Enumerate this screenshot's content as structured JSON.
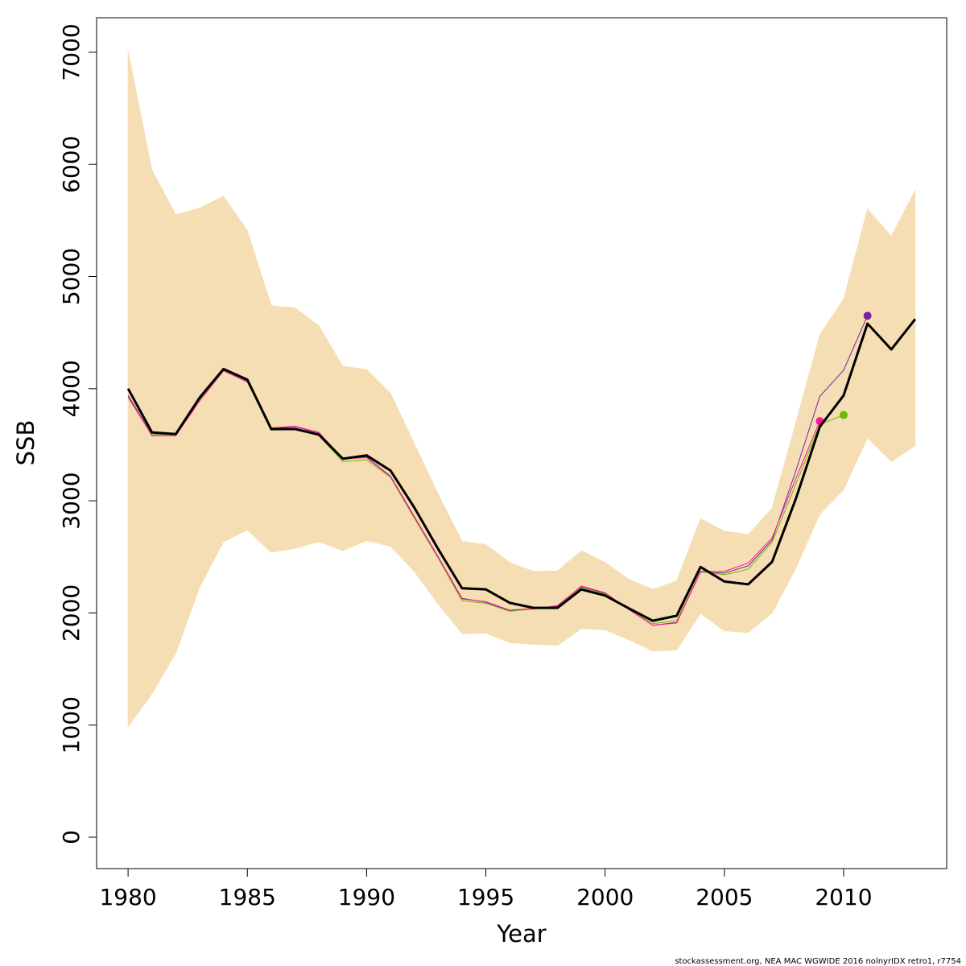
{
  "chart_data": {
    "type": "line",
    "xlabel": "Year",
    "ylabel": "SSB",
    "footer": "stockassessment.org, NEA MAC WGWIDE 2016 nolnyrIDX retro1, r7754",
    "x": [
      1980,
      1981,
      1982,
      1983,
      1984,
      1985,
      1986,
      1987,
      1988,
      1989,
      1990,
      1991,
      1992,
      1993,
      1994,
      1995,
      1996,
      1997,
      1998,
      1999,
      2000,
      2001,
      2002,
      2003,
      2004,
      2005,
      2006,
      2007,
      2008,
      2009,
      2010,
      2011,
      2012,
      2013
    ],
    "xlim": [
      1978.68,
      2014.32
    ],
    "ylim": [
      -280,
      7308
    ],
    "xticks": [
      1980,
      1985,
      1990,
      1995,
      2000,
      2005,
      2010
    ],
    "yticks": [
      0,
      1000,
      2000,
      3000,
      4000,
      5000,
      6000,
      7000
    ],
    "band": {
      "color": "#f5deb3",
      "upper": [
        7010,
        5950,
        5550,
        5610,
        5715,
        5410,
        4740,
        4720,
        4560,
        4200,
        4170,
        3960,
        3510,
        3060,
        2640,
        2610,
        2450,
        2370,
        2375,
        2555,
        2450,
        2300,
        2210,
        2285,
        2840,
        2730,
        2700,
        2935,
        3700,
        4480,
        4800,
        5600,
        5360,
        5770
      ],
      "lower": [
        985,
        1280,
        1640,
        2230,
        2635,
        2740,
        2540,
        2575,
        2635,
        2555,
        2645,
        2595,
        2370,
        2080,
        1815,
        1820,
        1735,
        1720,
        1710,
        1860,
        1850,
        1760,
        1660,
        1670,
        1995,
        1840,
        1825,
        2000,
        2400,
        2880,
        3100,
        3560,
        3350,
        3490
      ]
    },
    "series": [
      {
        "color": "#7b1fa2",
        "width": 1,
        "end_dot": true,
        "values": [
          3940,
          3590,
          3590,
          3900,
          4160,
          4065,
          3645,
          3660,
          3605,
          3380,
          3390,
          3220,
          2860,
          2500,
          2130,
          2095,
          2020,
          2035,
          2065,
          2235,
          2175,
          2030,
          1890,
          1915,
          2365,
          2355,
          2420,
          2650,
          3270,
          3930,
          4165,
          4650,
          null,
          null
        ]
      },
      {
        "color": "#66bb00",
        "width": 1,
        "end_dot": true,
        "values": [
          3920,
          3590,
          3590,
          3900,
          4160,
          4060,
          3630,
          3640,
          3580,
          3350,
          3365,
          3210,
          2845,
          2490,
          2110,
          2085,
          2015,
          2035,
          2055,
          2225,
          2170,
          2035,
          1905,
          1930,
          2370,
          2340,
          2390,
          2630,
          3150,
          3680,
          3765,
          null,
          null,
          null
        ]
      },
      {
        "color": "#ff1493",
        "width": 1,
        "end_dot": true,
        "values": [
          3930,
          3580,
          3580,
          3890,
          4160,
          4060,
          3650,
          3665,
          3610,
          3375,
          3385,
          3215,
          2855,
          2495,
          2125,
          2100,
          2025,
          2040,
          2060,
          2240,
          2180,
          2030,
          1890,
          1910,
          2370,
          2370,
          2445,
          2670,
          3200,
          3710,
          null,
          null,
          null,
          null
        ]
      },
      {
        "color": "#000000",
        "width": 3,
        "end_dot": false,
        "values": [
          4000,
          3610,
          3595,
          3920,
          4175,
          4080,
          3640,
          3640,
          3590,
          3375,
          3405,
          3270,
          2940,
          2570,
          2220,
          2210,
          2090,
          2045,
          2045,
          2210,
          2155,
          2040,
          1930,
          1975,
          2410,
          2280,
          2255,
          2455,
          3020,
          3660,
          3940,
          4580,
          4350,
          4620
        ]
      }
    ]
  }
}
